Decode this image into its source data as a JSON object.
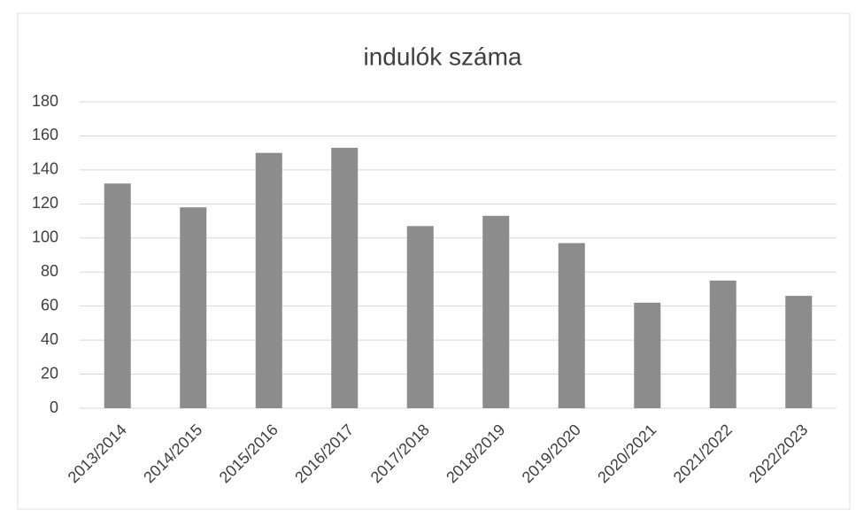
{
  "chart_data": {
    "type": "bar",
    "title": "indulók száma",
    "categories": [
      "2013/2014",
      "2014/2015",
      "2015/2016",
      "2016/2017",
      "2017/2018",
      "2018/2019",
      "2019/2020",
      "2020/2021",
      "2021/2022",
      "2022/2023"
    ],
    "values": [
      132,
      118,
      150,
      153,
      107,
      113,
      97,
      62,
      75,
      66
    ],
    "color": "#8c8c8c",
    "ylim": [
      0,
      180
    ],
    "yticks": [
      0,
      20,
      40,
      60,
      80,
      100,
      120,
      140,
      160,
      180
    ],
    "grid": true
  }
}
